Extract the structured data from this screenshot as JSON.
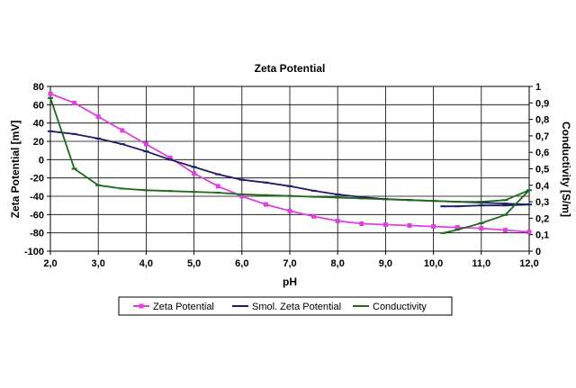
{
  "chart_data": {
    "type": "line",
    "title": "Zeta Potential",
    "xlabel": "pH",
    "ylabel": "Zeta Potential [mV]",
    "y2label": "Conductivity [S/m]",
    "xlim": [
      2.0,
      12.0
    ],
    "ylim": [
      -100,
      80
    ],
    "y2lim": [
      0,
      1
    ],
    "x_ticks": [
      2.0,
      3.0,
      4.0,
      5.0,
      6.0,
      7.0,
      8.0,
      9.0,
      10.0,
      11.0,
      12.0
    ],
    "x_tick_labels": [
      "2,0",
      "3,0",
      "4,0",
      "5,0",
      "6,0",
      "7,0",
      "8,0",
      "9,0",
      "10,0",
      "11,0",
      "12,0"
    ],
    "y_ticks": [
      -100,
      -80,
      -60,
      -40,
      -20,
      0,
      20,
      40,
      60,
      80
    ],
    "y_tick_labels": [
      "-100",
      "-80",
      "-60",
      "-40",
      "-20",
      "0",
      "20",
      "40",
      "60",
      "80"
    ],
    "y2_ticks": [
      0,
      0.1,
      0.2,
      0.3,
      0.4,
      0.5,
      0.6,
      0.7,
      0.8,
      0.9,
      1
    ],
    "y2_tick_labels": [
      "0",
      "0,1",
      "0,2",
      "0,3",
      "0,4",
      "0,5",
      "0,6",
      "0,7",
      "0,8",
      "0,9",
      "1"
    ],
    "grid": true,
    "legend_position": "bottom",
    "series": [
      {
        "name": "Zeta Potential",
        "axis": "left",
        "color": "#e040e0",
        "marker": "square",
        "x": [
          2.0,
          2.5,
          3.0,
          3.5,
          4.0,
          4.5,
          5.0,
          5.5,
          6.0,
          6.5,
          7.0,
          7.5,
          8.0,
          8.5,
          9.0,
          9.5,
          10.0,
          10.5,
          11.0,
          11.5,
          12.0
        ],
        "y": [
          72,
          62,
          47,
          32,
          17,
          2,
          -15,
          -29,
          -40,
          -49,
          -56,
          -62,
          -67,
          -70,
          -71,
          -72,
          -73,
          -74,
          -75,
          -77,
          -79
        ]
      },
      {
        "name": "Smol. Zeta Potential",
        "axis": "left",
        "color": "#1c1c6c",
        "marker": "dash",
        "x": [
          2.0,
          2.5,
          3.0,
          3.5,
          4.0,
          4.5,
          5.0,
          5.5,
          6.0,
          6.5,
          7.0,
          7.5,
          8.0,
          8.5,
          9.0,
          9.5,
          10.0,
          10.5,
          11.0,
          11.5,
          12.0,
          11.5,
          11.0,
          10.5,
          10.2
        ],
        "y": [
          31,
          28,
          23,
          17,
          9,
          0,
          -8,
          -16,
          -22,
          -25,
          -29,
          -34,
          -38,
          -41,
          -43,
          -44,
          -45,
          -46,
          -47,
          -48,
          -49,
          -50,
          -50,
          -51,
          -51
        ]
      },
      {
        "name": "Conductivity",
        "axis": "right",
        "color": "#1a6a1a",
        "marker": "dash",
        "x": [
          2.0,
          2.5,
          3.0,
          3.5,
          4.0,
          4.5,
          5.0,
          5.5,
          6.0,
          6.5,
          7.0,
          7.5,
          8.0,
          8.5,
          9.0,
          9.5,
          10.0,
          10.5,
          11.0,
          11.5,
          12.0,
          11.5,
          11.0,
          10.5,
          10.2
        ],
        "y": [
          0.93,
          0.5,
          0.4,
          0.38,
          0.37,
          0.365,
          0.36,
          0.355,
          0.345,
          0.34,
          0.335,
          0.33,
          0.325,
          0.32,
          0.315,
          0.31,
          0.305,
          0.3,
          0.3,
          0.31,
          0.37,
          0.22,
          0.17,
          0.13,
          0.11
        ]
      }
    ]
  }
}
